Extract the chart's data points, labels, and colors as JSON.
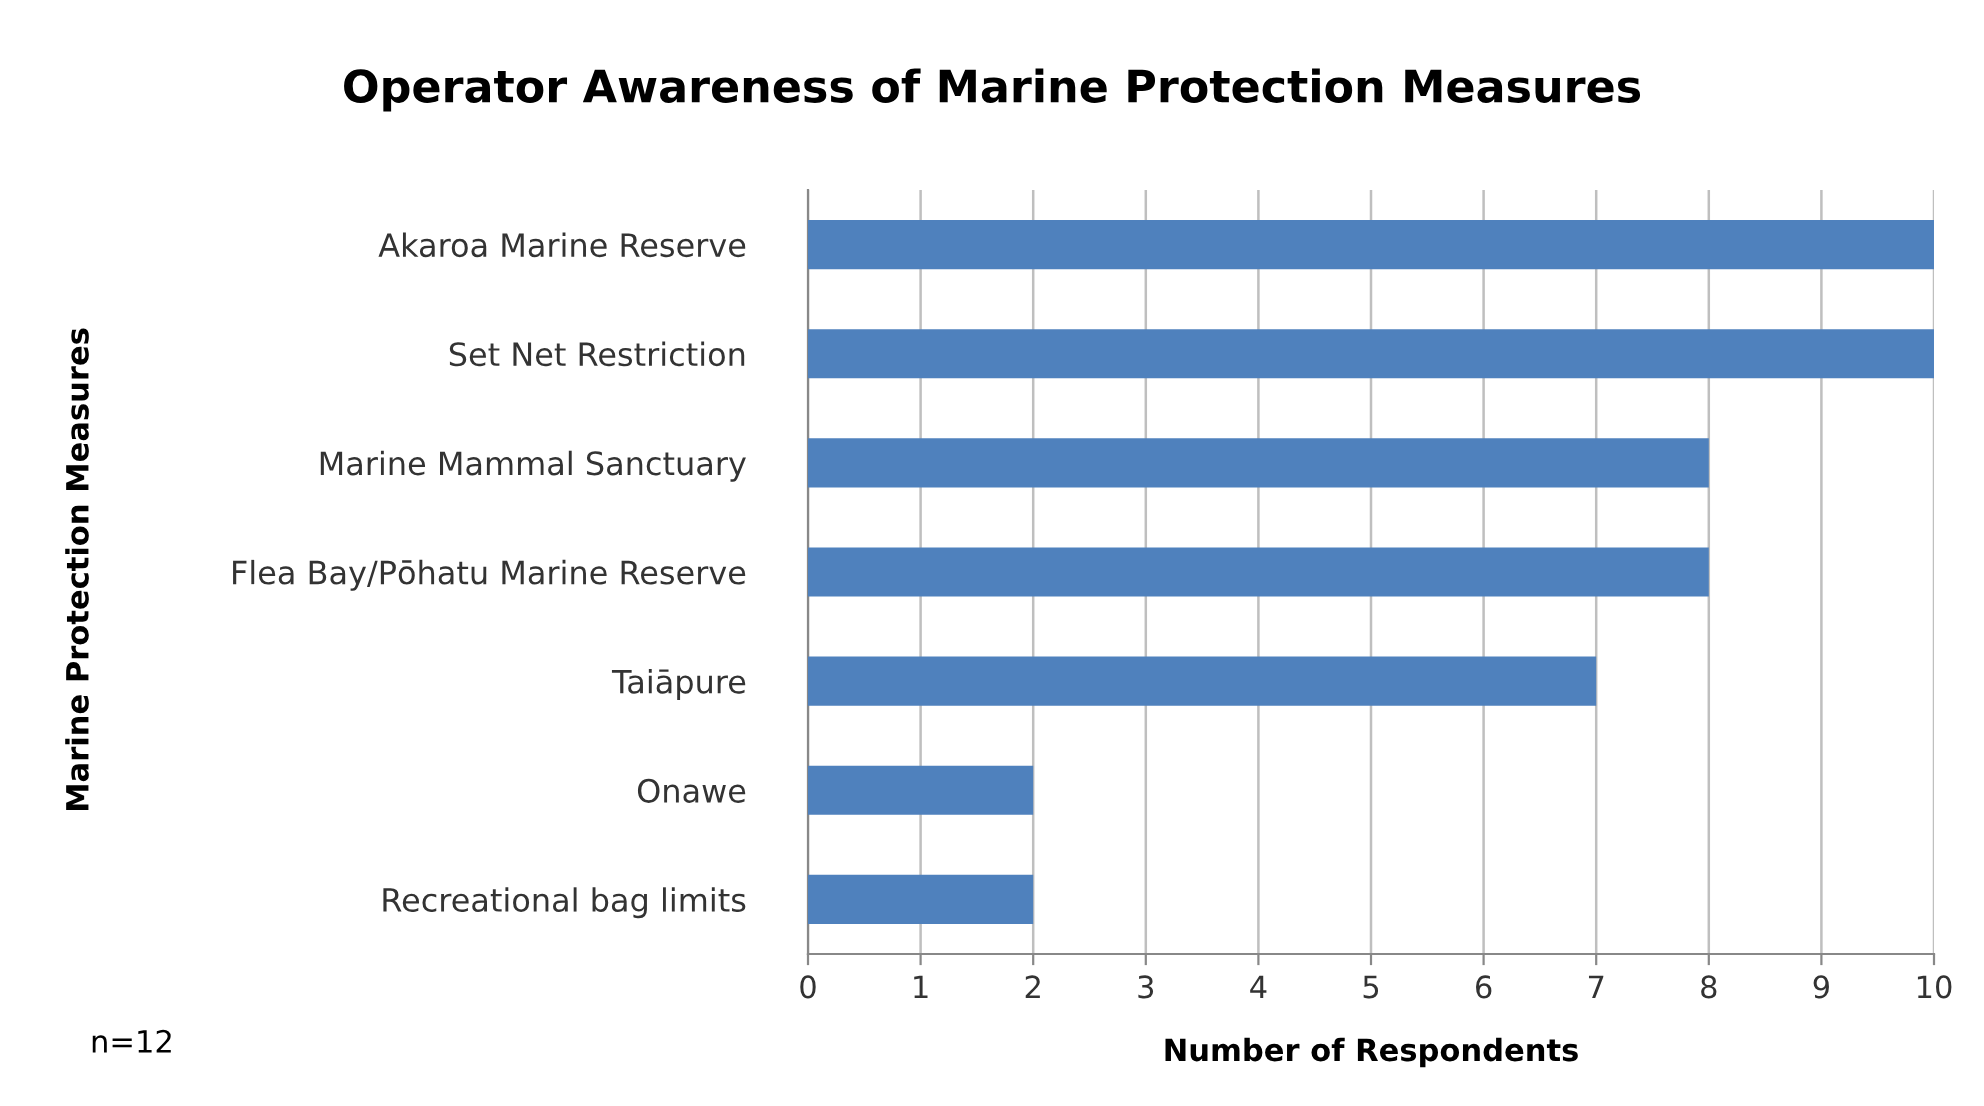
{
  "chart_data": {
    "type": "bar",
    "orientation": "horizontal",
    "title": "Operator Awareness of Marine Protection Measures",
    "xlabel": "Number of Respondents",
    "ylabel": "Marine Protection Measures",
    "categories": [
      "Akaroa Marine Reserve",
      "Set Net Restriction",
      "Marine Mammal Sanctuary",
      "Flea Bay/Pōhatu Marine Reserve",
      "Taiāpure",
      "Onawe",
      "Recreational bag limits"
    ],
    "values": [
      10,
      10,
      8,
      8,
      7,
      2,
      2
    ],
    "color": "#4f81bd",
    "xlim": [
      0,
      10
    ],
    "xticks": [
      0,
      1,
      2,
      3,
      4,
      5,
      6,
      7,
      8,
      9,
      10
    ],
    "grid": "x",
    "annotations": [
      "n=12"
    ]
  }
}
